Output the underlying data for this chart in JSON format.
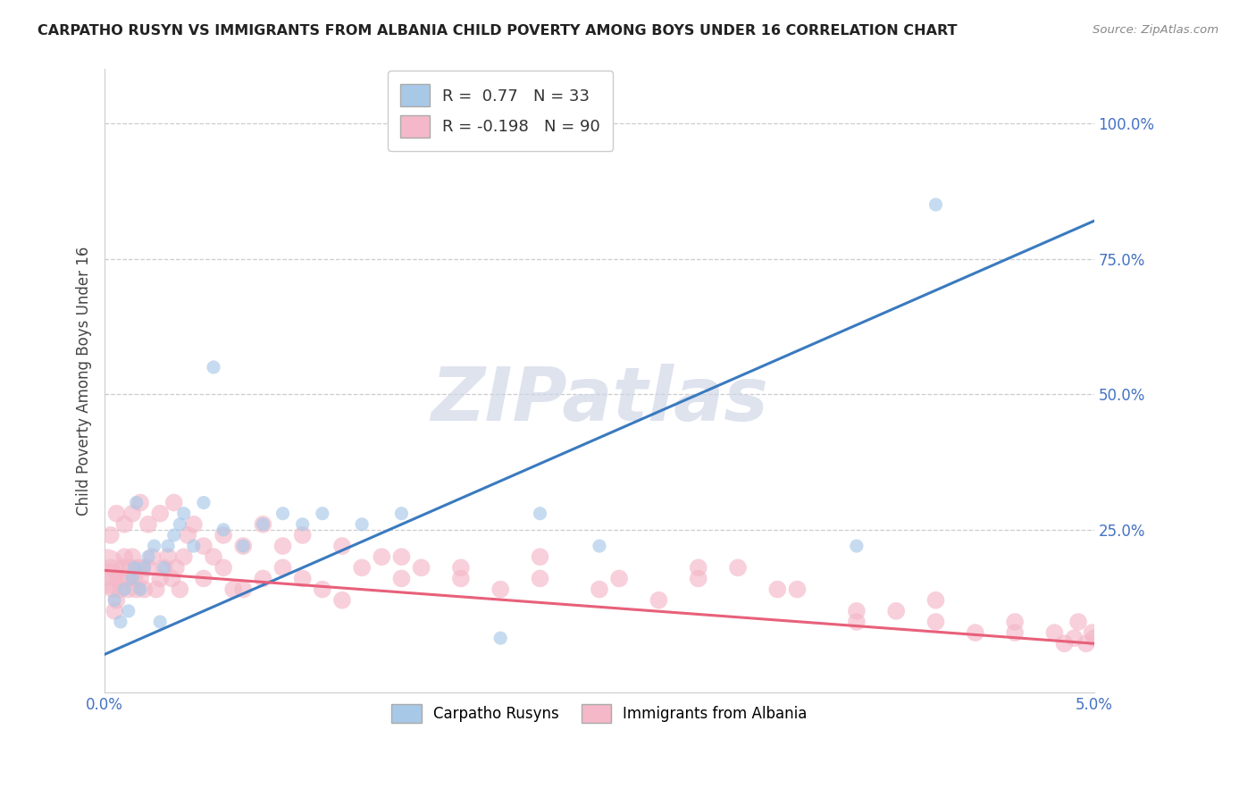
{
  "title": "CARPATHO RUSYN VS IMMIGRANTS FROM ALBANIA CHILD POVERTY AMONG BOYS UNDER 16 CORRELATION CHART",
  "source": "Source: ZipAtlas.com",
  "ylabel": "Child Poverty Among Boys Under 16",
  "watermark": "ZIPatlas",
  "xlim": [
    0.0,
    5.0
  ],
  "ylim": [
    -0.05,
    1.1
  ],
  "blue_color": "#a8c8e8",
  "pink_color": "#f4b8c8",
  "blue_line_color": "#3a7abf",
  "pink_line_color": "#e8607a",
  "background_color": "#ffffff",
  "blue_R": 0.77,
  "blue_N": 33,
  "pink_R": -0.198,
  "pink_N": 90,
  "blue_line_x0": 0.0,
  "blue_line_y0": 0.02,
  "blue_line_x1": 5.0,
  "blue_line_y1": 0.82,
  "pink_line_x0": 0.0,
  "pink_line_y0": 0.175,
  "pink_line_x1": 5.0,
  "pink_line_y1": 0.04,
  "blue_scatter_x": [
    0.05,
    0.08,
    0.1,
    0.12,
    0.14,
    0.15,
    0.16,
    0.18,
    0.2,
    0.22,
    0.25,
    0.28,
    0.3,
    0.32,
    0.35,
    0.38,
    0.4,
    0.45,
    0.5,
    0.55,
    0.6,
    0.7,
    0.8,
    0.9,
    1.0,
    1.1,
    1.3,
    1.5,
    2.0,
    2.2,
    2.5,
    3.8,
    4.2
  ],
  "blue_scatter_y": [
    0.12,
    0.08,
    0.14,
    0.1,
    0.16,
    0.18,
    0.3,
    0.14,
    0.18,
    0.2,
    0.22,
    0.08,
    0.18,
    0.22,
    0.24,
    0.26,
    0.28,
    0.22,
    0.3,
    0.55,
    0.25,
    0.22,
    0.26,
    0.28,
    0.26,
    0.28,
    0.26,
    0.28,
    0.05,
    0.28,
    0.22,
    0.22,
    0.85
  ],
  "blue_scatter_sizes": [
    120,
    120,
    120,
    120,
    120,
    120,
    120,
    120,
    120,
    120,
    120,
    120,
    120,
    120,
    120,
    120,
    120,
    120,
    120,
    120,
    120,
    120,
    120,
    120,
    120,
    120,
    120,
    120,
    120,
    120,
    120,
    120,
    120
  ],
  "pink_scatter_x": [
    0.01,
    0.02,
    0.03,
    0.04,
    0.05,
    0.06,
    0.07,
    0.08,
    0.09,
    0.1,
    0.11,
    0.12,
    0.13,
    0.14,
    0.15,
    0.16,
    0.17,
    0.18,
    0.19,
    0.2,
    0.22,
    0.24,
    0.26,
    0.28,
    0.3,
    0.32,
    0.34,
    0.36,
    0.38,
    0.4,
    0.45,
    0.5,
    0.55,
    0.6,
    0.65,
    0.7,
    0.8,
    0.9,
    1.0,
    1.1,
    1.2,
    1.3,
    1.4,
    1.5,
    1.6,
    1.8,
    2.0,
    2.2,
    2.5,
    2.8,
    3.0,
    3.2,
    3.5,
    3.8,
    4.0,
    4.2,
    4.4,
    4.6,
    4.8,
    4.9,
    0.03,
    0.06,
    0.1,
    0.14,
    0.18,
    0.22,
    0.28,
    0.35,
    0.42,
    0.5,
    0.6,
    0.7,
    0.8,
    0.9,
    1.0,
    1.2,
    1.5,
    1.8,
    2.2,
    2.6,
    3.0,
    3.4,
    3.8,
    4.2,
    4.6,
    4.85,
    4.92,
    4.96,
    4.99,
    5.0
  ],
  "pink_scatter_y": [
    0.18,
    0.16,
    0.18,
    0.14,
    0.1,
    0.12,
    0.16,
    0.14,
    0.18,
    0.2,
    0.16,
    0.14,
    0.18,
    0.2,
    0.16,
    0.14,
    0.18,
    0.16,
    0.18,
    0.14,
    0.18,
    0.2,
    0.14,
    0.16,
    0.18,
    0.2,
    0.16,
    0.18,
    0.14,
    0.2,
    0.26,
    0.16,
    0.2,
    0.18,
    0.14,
    0.14,
    0.16,
    0.18,
    0.16,
    0.14,
    0.12,
    0.18,
    0.2,
    0.16,
    0.18,
    0.16,
    0.14,
    0.16,
    0.14,
    0.12,
    0.16,
    0.18,
    0.14,
    0.08,
    0.1,
    0.08,
    0.06,
    0.08,
    0.06,
    0.05,
    0.24,
    0.28,
    0.26,
    0.28,
    0.3,
    0.26,
    0.28,
    0.3,
    0.24,
    0.22,
    0.24,
    0.22,
    0.26,
    0.22,
    0.24,
    0.22,
    0.2,
    0.18,
    0.2,
    0.16,
    0.18,
    0.14,
    0.1,
    0.12,
    0.06,
    0.04,
    0.08,
    0.04,
    0.06,
    0.05
  ],
  "pink_scatter_sizes": [
    900,
    600,
    200,
    200,
    200,
    200,
    200,
    200,
    200,
    200,
    200,
    200,
    200,
    200,
    200,
    200,
    200,
    200,
    200,
    200,
    200,
    200,
    200,
    200,
    200,
    200,
    200,
    200,
    200,
    200,
    200,
    200,
    200,
    200,
    200,
    200,
    200,
    200,
    200,
    200,
    200,
    200,
    200,
    200,
    200,
    200,
    200,
    200,
    200,
    200,
    200,
    200,
    200,
    200,
    200,
    200,
    200,
    200,
    200,
    200,
    200,
    200,
    200,
    200,
    200,
    200,
    200,
    200,
    200,
    200,
    200,
    200,
    200,
    200,
    200,
    200,
    200,
    200,
    200,
    200,
    200,
    200,
    200,
    200,
    200,
    200,
    200,
    200,
    200,
    200
  ]
}
